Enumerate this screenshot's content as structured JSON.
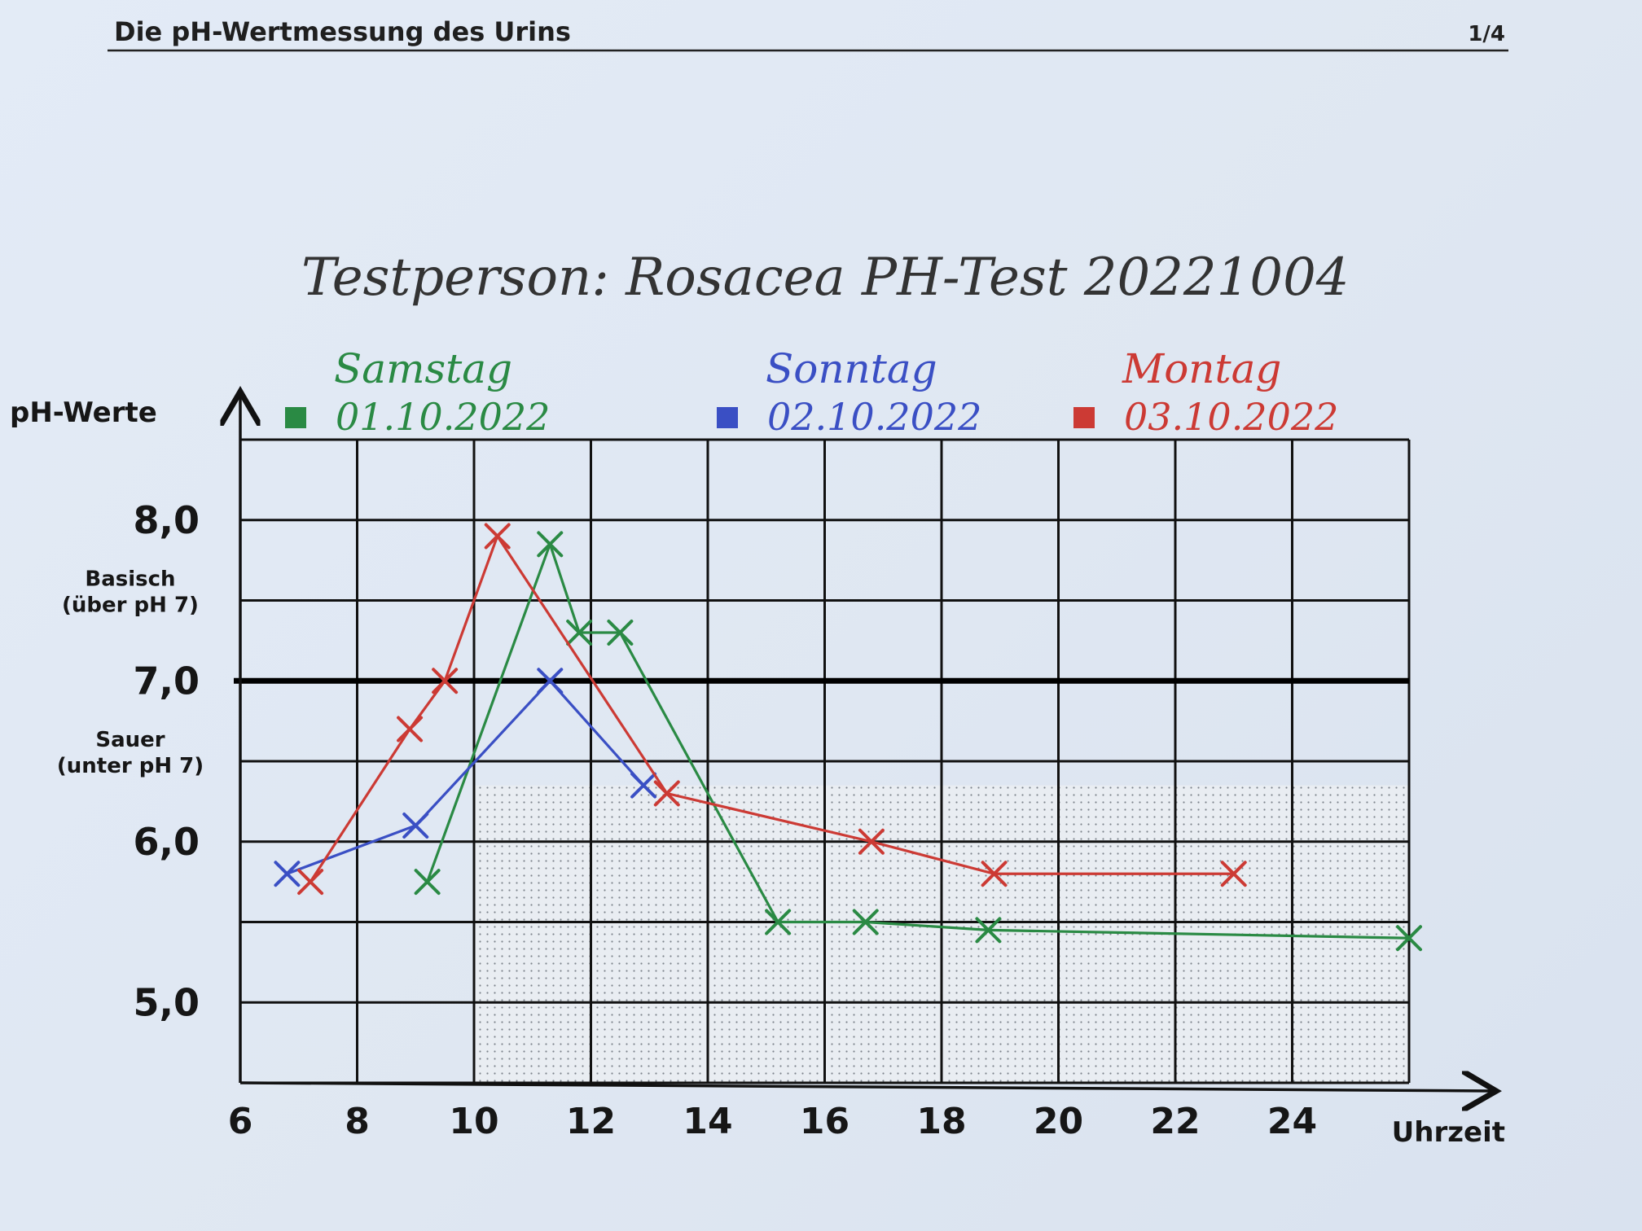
{
  "header": {
    "title": "Die pH-Wertmessung des Urins",
    "page": "1/4"
  },
  "handwritten_title": "Testperson:  Rosacea  PH-Test 20221004",
  "colors": {
    "samstag": "#2a8a44",
    "sonntag": "#3a4fc4",
    "montag": "#cc3a34",
    "grid": "#111111",
    "shade": "#8a8f96"
  },
  "chart_data": {
    "type": "line",
    "title": "",
    "xlabel": "Uhrzeit",
    "ylabel": "pH-Werte",
    "xlim": [
      6,
      26
    ],
    "ylim": [
      4.5,
      8.5
    ],
    "x_ticks": [
      "6",
      "8",
      "10",
      "12",
      "14",
      "16",
      "18",
      "20",
      "22",
      "24"
    ],
    "y_ticks": [
      "8,0",
      "7,0",
      "6,0",
      "5,0"
    ],
    "y_tick_values": [
      8.0,
      7.0,
      6.0,
      5.0
    ],
    "reference_line": 7.0,
    "annotations": [
      {
        "lines": [
          "Basisch",
          "(über pH 7)"
        ],
        "y": 7.55
      },
      {
        "lines": [
          "Sauer",
          "(unter pH 7)"
        ],
        "y": 6.55
      }
    ],
    "shaded_region": {
      "x": [
        10,
        26
      ],
      "y": [
        4.5,
        6.35
      ]
    },
    "grid": true,
    "legend_position": "top",
    "series": [
      {
        "name": "Samstag",
        "date": "01.10.2022",
        "color": "#2a8a44",
        "points": [
          [
            9.2,
            5.75
          ],
          [
            11.3,
            7.85
          ],
          [
            11.8,
            7.3
          ],
          [
            12.5,
            7.3
          ],
          [
            15.2,
            5.5
          ],
          [
            16.7,
            5.5
          ],
          [
            18.8,
            5.45
          ],
          [
            26.0,
            5.4
          ]
        ]
      },
      {
        "name": "Sonntag",
        "date": "02.10.2022",
        "color": "#3a4fc4",
        "points": [
          [
            6.8,
            5.8
          ],
          [
            9.0,
            6.1
          ],
          [
            11.3,
            7.0
          ],
          [
            12.9,
            6.35
          ]
        ]
      },
      {
        "name": "Montag",
        "date": "03.10.2022",
        "color": "#cc3a34",
        "points": [
          [
            7.2,
            5.75
          ],
          [
            8.9,
            6.7
          ],
          [
            9.5,
            7.0
          ],
          [
            10.4,
            7.9
          ],
          [
            13.3,
            6.3
          ],
          [
            16.8,
            6.0
          ],
          [
            18.9,
            5.8
          ],
          [
            23.0,
            5.8
          ]
        ]
      }
    ]
  }
}
